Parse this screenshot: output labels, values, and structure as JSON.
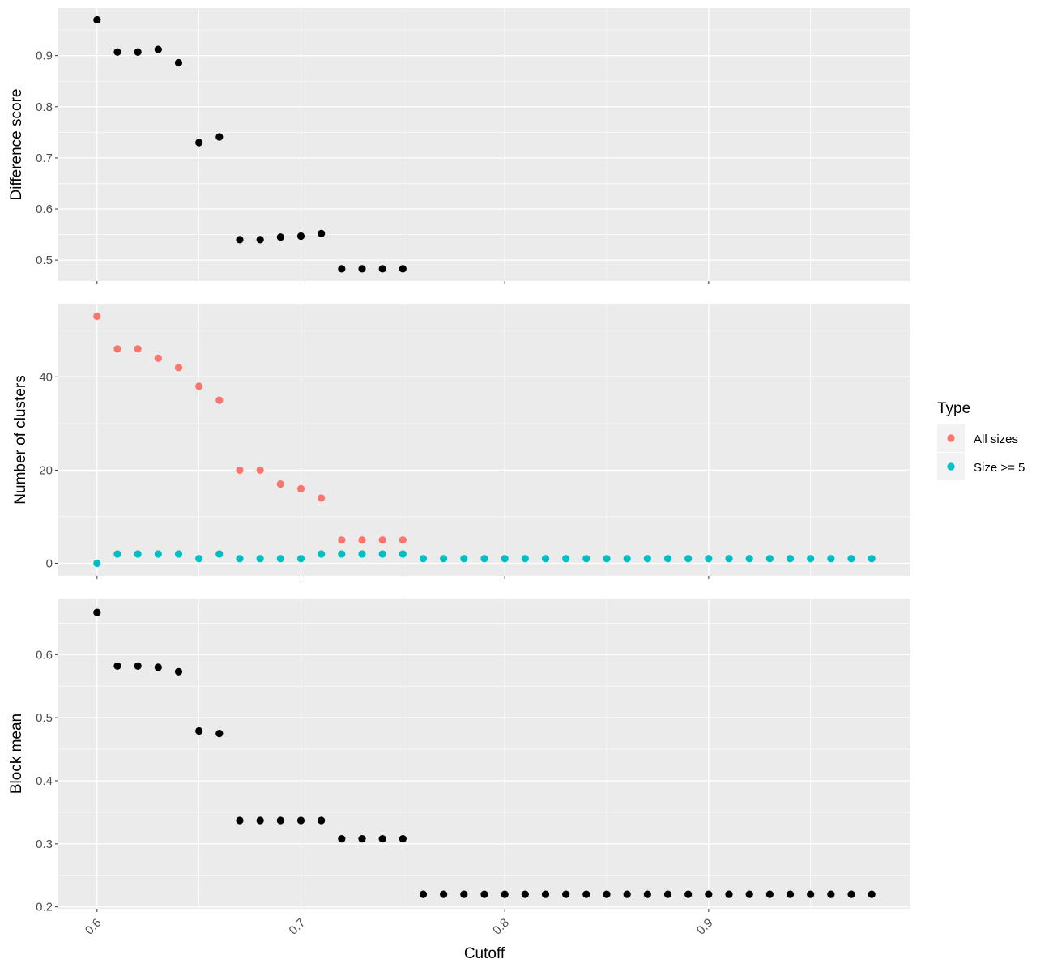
{
  "chart_data": {
    "type": "scatter",
    "xlabel": "Cutoff",
    "x_ticks": [
      "0.6",
      "0.7",
      "0.8",
      "0.9"
    ],
    "xlim": [
      0.581,
      0.999
    ],
    "legend": {
      "title": "Type",
      "placement": "right",
      "entries": [
        {
          "name": "All sizes",
          "color": "#F8766D"
        },
        {
          "name": "Size >= 5",
          "color": "#00BFC4"
        }
      ]
    },
    "panels": [
      {
        "ylabel": "Difference score",
        "ylim": [
          0.459,
          0.993
        ],
        "y_ticks": [
          0.5,
          0.6,
          0.7,
          0.8,
          0.9
        ],
        "series": [
          {
            "color": "#000000",
            "x": [
              0.6,
              0.61,
              0.62,
              0.63,
              0.64,
              0.65,
              0.66,
              0.67,
              0.68,
              0.69,
              0.7,
              0.71,
              0.72,
              0.73,
              0.74,
              0.75
            ],
            "y": [
              0.97,
              0.907,
              0.907,
              0.912,
              0.886,
              0.73,
              0.741,
              0.54,
              0.54,
              0.545,
              0.547,
              0.552,
              0.483,
              0.483,
              0.483,
              0.483
            ]
          }
        ]
      },
      {
        "ylabel": "Number of clusters",
        "ylim": [
          -2.7,
          55.7
        ],
        "y_ticks": [
          0,
          20,
          40
        ],
        "series": [
          {
            "name": "All sizes",
            "color": "#F8766D",
            "x": [
              0.6,
              0.61,
              0.62,
              0.63,
              0.64,
              0.65,
              0.66,
              0.67,
              0.68,
              0.69,
              0.7,
              0.71,
              0.72,
              0.73,
              0.74,
              0.75
            ],
            "y": [
              53,
              46,
              46,
              44,
              42,
              38,
              35,
              20,
              20,
              17,
              16,
              14,
              5,
              5,
              5,
              5
            ]
          },
          {
            "name": "Size >= 5",
            "color": "#00BFC4",
            "x": [
              0.6,
              0.61,
              0.62,
              0.63,
              0.64,
              0.65,
              0.66,
              0.67,
              0.68,
              0.69,
              0.7,
              0.71,
              0.72,
              0.73,
              0.74,
              0.75,
              0.76,
              0.77,
              0.78,
              0.79,
              0.8,
              0.81,
              0.82,
              0.83,
              0.84,
              0.85,
              0.86,
              0.87,
              0.88,
              0.89,
              0.9,
              0.91,
              0.92,
              0.93,
              0.94,
              0.95,
              0.96,
              0.97,
              0.98
            ],
            "y": [
              0,
              2,
              2,
              2,
              2,
              1,
              2,
              1,
              1,
              1,
              1,
              2,
              2,
              2,
              2,
              2,
              1,
              1,
              1,
              1,
              1,
              1,
              1,
              1,
              1,
              1,
              1,
              1,
              1,
              1,
              1,
              1,
              1,
              1,
              1,
              1,
              1,
              1,
              1
            ]
          }
        ]
      },
      {
        "ylabel": "Block mean",
        "ylim": [
          0.197,
          0.689
        ],
        "y_ticks": [
          0.2,
          0.3,
          0.4,
          0.5,
          0.6
        ],
        "series": [
          {
            "color": "#000000",
            "x": [
              0.6,
              0.61,
              0.62,
              0.63,
              0.64,
              0.65,
              0.66,
              0.67,
              0.68,
              0.69,
              0.7,
              0.71,
              0.72,
              0.73,
              0.74,
              0.75,
              0.76,
              0.77,
              0.78,
              0.79,
              0.8,
              0.81,
              0.82,
              0.83,
              0.84,
              0.85,
              0.86,
              0.87,
              0.88,
              0.89,
              0.9,
              0.91,
              0.92,
              0.93,
              0.94,
              0.95,
              0.96,
              0.97,
              0.98
            ],
            "y": [
              0.667,
              0.582,
              0.582,
              0.58,
              0.573,
              0.479,
              0.475,
              0.337,
              0.337,
              0.337,
              0.337,
              0.337,
              0.308,
              0.308,
              0.308,
              0.308,
              0.22,
              0.22,
              0.22,
              0.22,
              0.22,
              0.22,
              0.22,
              0.22,
              0.22,
              0.22,
              0.22,
              0.22,
              0.22,
              0.22,
              0.22,
              0.22,
              0.22,
              0.22,
              0.22,
              0.22,
              0.22,
              0.22,
              0.22
            ]
          }
        ]
      }
    ]
  }
}
